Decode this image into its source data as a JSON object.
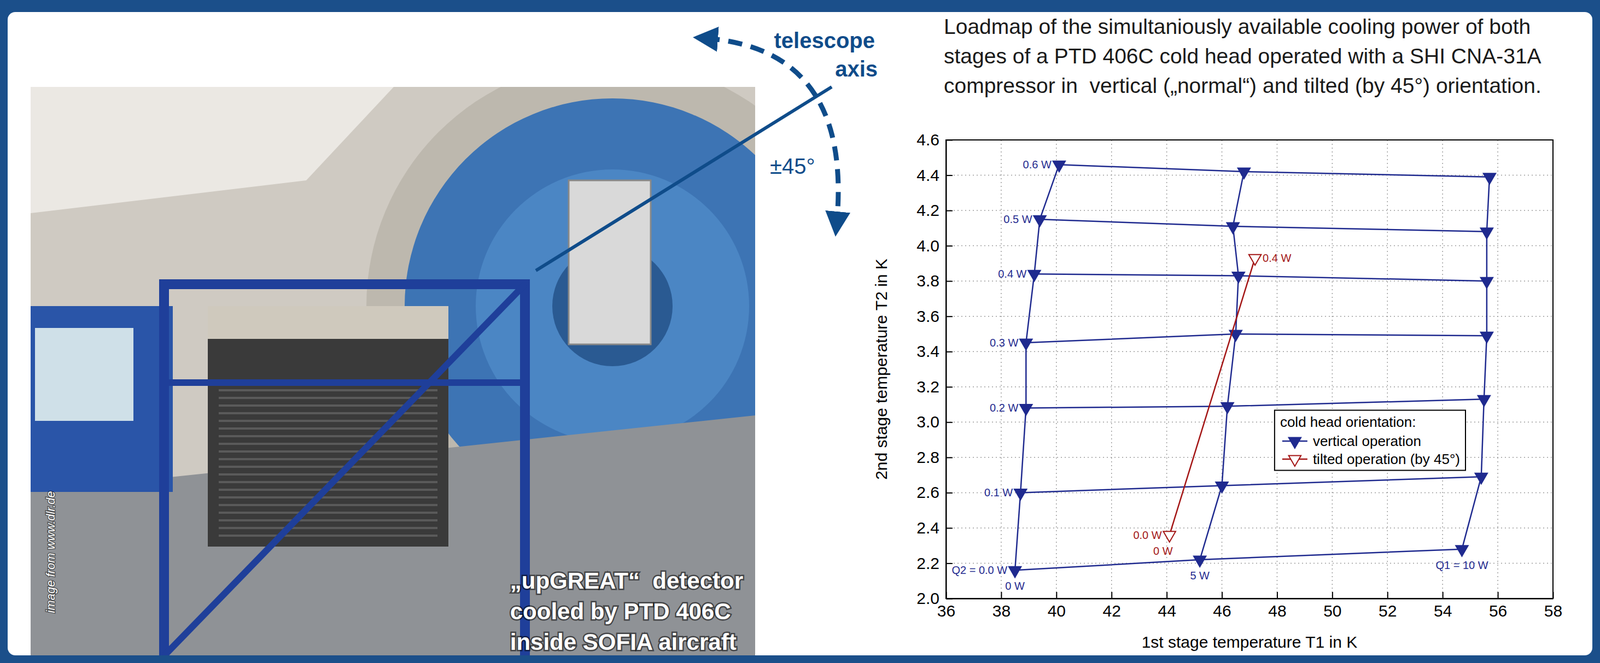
{
  "chart_data": {
    "type": "line",
    "title": "Loadmap of the simultaniously available cooling power of both stages of a PTD 406C cold head operated with a SHI CNA-31A compressor in  vertical („normal“) and tilted (by 45°) orientation.",
    "x_label": "1st stage temperature T1 in K",
    "y_label": "2nd stage temperature T2 in K",
    "xlim": [
      36,
      58
    ],
    "xticks": [
      36,
      38,
      40,
      42,
      44,
      46,
      48,
      50,
      52,
      54,
      56,
      58
    ],
    "ylim": [
      2,
      4.6
    ],
    "yticks": [
      {
        "value": 2,
        "label": "2.0"
      },
      2.2,
      2.4,
      2.6,
      2.8,
      {
        "value": 3,
        "label": "3.0"
      },
      3.2,
      3.4,
      3.6,
      3.8,
      {
        "value": 4,
        "label": "4.0"
      },
      4.2,
      4.4,
      4.6
    ],
    "grid": true,
    "legend": "lower right",
    "legend_title": "cold head orientation:",
    "series": [
      {
        "name": "vertical operation",
        "color": "#1f2a8f",
        "marker": "triangle-down",
        "x": [
          [
            38.5,
            38.7,
            38.9,
            38.9,
            39.2,
            39.4,
            40.1
          ],
          [
            45.2,
            46.0,
            46.2,
            46.5,
            46.6,
            46.4,
            46.8
          ],
          [
            54.7,
            55.4,
            55.5,
            55.6,
            55.6,
            55.6,
            55.7
          ]
        ],
        "values": [
          [
            2.16,
            2.6,
            3.08,
            3.45,
            3.84,
            4.15,
            4.46
          ],
          [
            2.22,
            2.64,
            3.09,
            3.5,
            3.83,
            4.11,
            4.42
          ],
          [
            2.28,
            2.69,
            3.13,
            3.49,
            3.8,
            4.08,
            4.39
          ]
        ],
        "q2_labels": [
          "Q2 = 0.0 W",
          "0.1 W",
          "0.2 W",
          "0.3 W",
          "0.4 W",
          "0.5 W",
          "0.6 W"
        ],
        "q1_labels": [
          "0 W",
          "5 W",
          "Q1 = 10 W"
        ]
      },
      {
        "name": "tilted operation (by 45°)",
        "color": "#a31515",
        "marker": "triangle-down-open",
        "x": [
          [
            44.1,
            47.2
          ]
        ],
        "values": [
          [
            2.36,
            3.93
          ]
        ],
        "q2_labels": [
          "0.0 W",
          "0.4 W"
        ],
        "q1_labels": [
          "0 W"
        ]
      }
    ]
  },
  "photo": {
    "caption_lines": [
      "„upGREAT“  detector",
      "cooled by PTD 406C",
      "inside SOFIA aircraft"
    ],
    "credit": "image from www.dlr.de",
    "axis_label_lines": [
      "telescope",
      "axis"
    ],
    "tilt_label": "±45°"
  }
}
